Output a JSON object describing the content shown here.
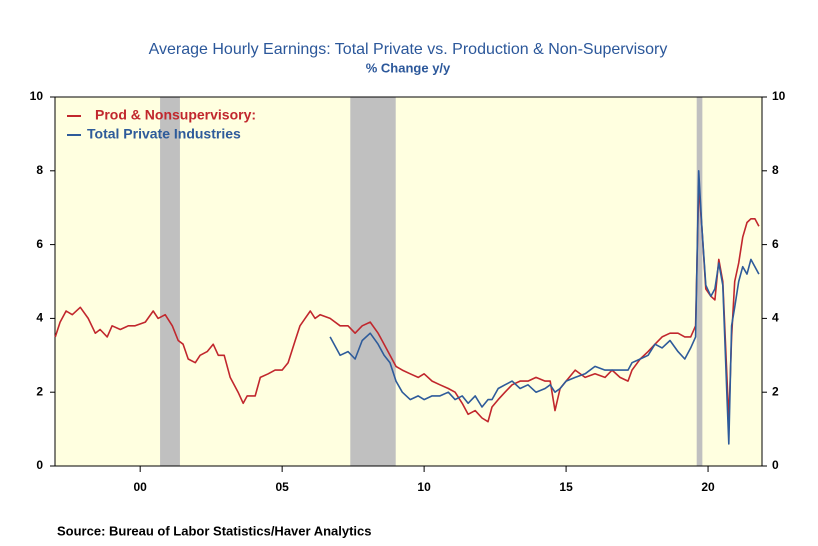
{
  "chart_data": {
    "type": "line",
    "title": "Average Hourly Earnings: Total Private vs. Production & Non-Supervisory",
    "subtitle": "% Change y/y",
    "source": "Source:  Bureau of Labor Statistics/Haver Analytics",
    "plot_background": "#ffffe0",
    "shade_color": "#c0c0c0",
    "shaded_periods": [
      [
        2001.2,
        2001.9
      ],
      [
        2007.9,
        2009.5
      ],
      [
        2020.1,
        2020.3
      ]
    ],
    "legend": "upper left",
    "x": [
      1997.51,
      1997.68,
      1997.89,
      1998.11,
      1998.39,
      1998.67,
      1998.92,
      1999.09,
      1999.34,
      1999.51,
      1999.8,
      2000.08,
      2000.32,
      2000.68,
      2000.96,
      2001.13,
      2001.38,
      2001.63,
      2001.84,
      2002.01,
      2002.19,
      2002.44,
      2002.61,
      2002.86,
      2003.07,
      2003.25,
      2003.46,
      2003.67,
      2003.95,
      2004.13,
      2004.27,
      2004.55,
      2004.73,
      2005.01,
      2005.25,
      2005.5,
      2005.71,
      2005.96,
      2006.13,
      2006.31,
      2006.49,
      2006.66,
      2006.84,
      2007.19,
      2007.54,
      2007.82,
      2008.07,
      2008.32,
      2008.6,
      2008.88,
      2009.09,
      2009.3,
      2009.51,
      2009.73,
      2010.01,
      2010.29,
      2010.5,
      2010.78,
      2011.06,
      2011.35,
      2011.59,
      2011.84,
      2012.05,
      2012.3,
      2012.54,
      2012.75,
      2012.89,
      2013.11,
      2013.35,
      2013.6,
      2013.88,
      2014.16,
      2014.44,
      2014.76,
      2014.94,
      2015.11,
      2015.29,
      2015.5,
      2015.82,
      2016.17,
      2016.52,
      2016.87,
      2017.12,
      2017.4,
      2017.68,
      2017.82,
      2018.11,
      2018.39,
      2018.63,
      2018.88,
      2019.16,
      2019.44,
      2019.68,
      2019.89,
      2020.06,
      2020.17,
      2020.28,
      2020.42,
      2020.6,
      2020.74,
      2020.88,
      2021.02,
      2021.16,
      2021.23,
      2021.33,
      2021.44,
      2021.58,
      2021.72,
      2021.87,
      2022.01,
      2022.15,
      2022.29
    ],
    "series": [
      {
        "name": "Prod & Nonsupervisory:",
        "color": "#c1272d",
        "values": [
          3.5,
          3.9,
          4.2,
          4.1,
          4.3,
          4.0,
          3.6,
          3.7,
          3.5,
          3.8,
          3.7,
          3.8,
          3.8,
          3.9,
          4.2,
          4.0,
          4.1,
          3.8,
          3.4,
          3.3,
          2.9,
          2.8,
          3.0,
          3.1,
          3.3,
          3.0,
          3.0,
          2.4,
          2.0,
          1.7,
          1.9,
          1.9,
          2.4,
          2.5,
          2.6,
          2.6,
          2.8,
          3.4,
          3.8,
          4.0,
          4.2,
          4.0,
          4.1,
          4.0,
          3.8,
          3.8,
          3.6,
          3.8,
          3.9,
          3.6,
          3.3,
          3.0,
          2.7,
          2.6,
          2.5,
          2.4,
          2.5,
          2.3,
          2.2,
          2.1,
          2.0,
          1.7,
          1.4,
          1.5,
          1.3,
          1.2,
          1.6,
          1.8,
          2.0,
          2.2,
          2.3,
          2.3,
          2.4,
          2.3,
          2.3,
          1.5,
          2.1,
          2.3,
          2.6,
          2.4,
          2.5,
          2.4,
          2.6,
          2.4,
          2.3,
          2.6,
          2.9,
          3.1,
          3.3,
          3.5,
          3.6,
          3.6,
          3.5,
          3.5,
          3.8,
          7.6,
          6.5,
          4.8,
          4.6,
          4.5,
          5.6,
          5.0,
          2.5,
          1.2,
          3.5,
          5.0,
          5.5,
          6.2,
          6.6,
          6.7,
          6.7,
          6.5
        ]
      },
      {
        "name": "Total Private Industries",
        "color": "#2e5b9a",
        "values": [
          null,
          null,
          null,
          null,
          null,
          null,
          null,
          null,
          null,
          null,
          null,
          null,
          null,
          null,
          null,
          null,
          null,
          null,
          null,
          null,
          null,
          null,
          null,
          null,
          null,
          null,
          null,
          null,
          null,
          null,
          null,
          null,
          null,
          null,
          null,
          null,
          null,
          null,
          null,
          null,
          null,
          null,
          null,
          3.5,
          3.0,
          3.1,
          2.9,
          3.4,
          3.6,
          3.3,
          3.0,
          2.8,
          2.3,
          2.0,
          1.8,
          1.9,
          1.8,
          1.9,
          1.9,
          2.0,
          1.8,
          1.9,
          1.7,
          1.9,
          1.6,
          1.8,
          1.8,
          2.1,
          2.2,
          2.3,
          2.1,
          2.2,
          2.0,
          2.1,
          2.2,
          2.0,
          2.1,
          2.3,
          2.4,
          2.5,
          2.7,
          2.6,
          2.6,
          2.6,
          2.6,
          2.8,
          2.9,
          3.0,
          3.3,
          3.2,
          3.4,
          3.1,
          2.9,
          3.2,
          3.5,
          8.0,
          6.5,
          4.9,
          4.6,
          4.8,
          5.5,
          4.9,
          2.0,
          0.6,
          3.8,
          4.3,
          5.0,
          5.4,
          5.2,
          5.6,
          5.4,
          5.2
        ]
      }
    ],
    "xlim": [
      1997.5,
      2022.4
    ],
    "xticks": [
      {
        "value": 2000.5,
        "label": "00"
      },
      {
        "value": 2005.5,
        "label": "05"
      },
      {
        "value": 2010.5,
        "label": "10"
      },
      {
        "value": 2015.5,
        "label": "15"
      },
      {
        "value": 2020.5,
        "label": "20"
      }
    ],
    "ylim": [
      0,
      10
    ],
    "yticks": [
      0,
      2,
      4,
      6,
      8,
      10
    ],
    "y2lim": [
      0,
      10
    ],
    "y2ticks": [
      0,
      2,
      4,
      6,
      8,
      10
    ]
  }
}
